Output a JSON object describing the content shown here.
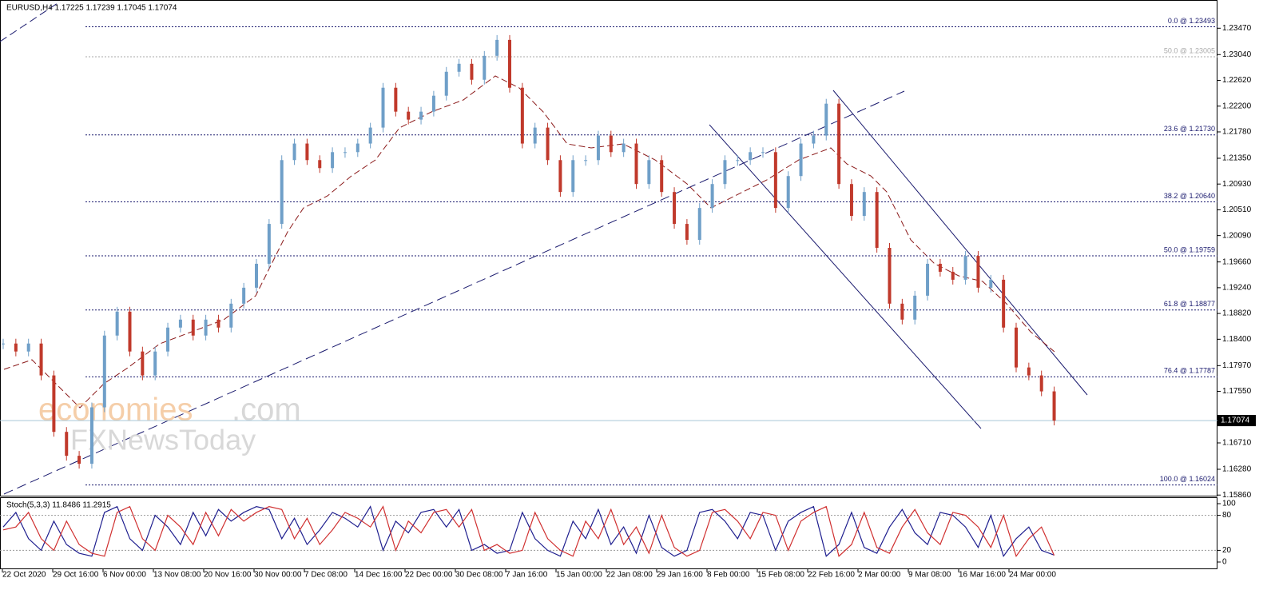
{
  "chart_data": [
    {
      "type": "candlestick",
      "title": "EURUSD,H4  1.17225 1.17239 1.17045 1.17074",
      "up_color": "#6f9fc8",
      "down_color": "#c0392b",
      "values": [
        1.1833,
        1.182,
        1.1833,
        1.1781,
        1.1689,
        1.165,
        1.1637,
        1.1729,
        1.1846,
        1.1885,
        1.182,
        1.1781,
        1.182,
        1.1859,
        1.1872,
        1.1846,
        1.1872,
        1.1859,
        1.1898,
        1.1924,
        1.1963,
        1.2028,
        1.2132,
        1.2159,
        1.2132,
        1.2119,
        1.2145,
        1.2145,
        1.2159,
        1.2185,
        1.225,
        1.2211,
        1.2198,
        1.2211,
        1.2237,
        1.2276,
        1.2289,
        1.2263,
        1.2302,
        1.2328,
        1.225,
        1.2159,
        1.2185,
        1.2132,
        1.208,
        1.2132,
        1.2132,
        1.2172,
        1.2145,
        1.2159,
        1.2093,
        1.2132,
        1.208,
        1.2028,
        1.2002,
        1.2054,
        1.2093,
        1.2132,
        1.2132,
        1.2145,
        1.2145,
        1.2054,
        1.2106,
        1.2159,
        1.2172,
        1.2224,
        1.2093,
        1.2041,
        1.208,
        1.1989,
        1.1898,
        1.1872,
        1.1911,
        1.1963,
        1.195,
        1.1937,
        1.1976,
        1.1924,
        1.1937,
        1.1859,
        1.1794,
        1.1781,
        1.1755,
        1.17074
      ],
      "ylim": [
        1.1585,
        1.2393
      ],
      "yticks": [
        {
          "value": 1.2347,
          "label": "1.23470"
        },
        {
          "value": 1.2304,
          "label": "1.23040"
        },
        {
          "value": 1.2262,
          "label": "1.22620"
        },
        {
          "value": 1.222,
          "label": "1.22200"
        },
        {
          "value": 1.2178,
          "label": "1.21780"
        },
        {
          "value": 1.2135,
          "label": "1.21350"
        },
        {
          "value": 1.2093,
          "label": "1.20930"
        },
        {
          "value": 1.2051,
          "label": "1.20510"
        },
        {
          "value": 1.2009,
          "label": "1.20090"
        },
        {
          "value": 1.1966,
          "label": "1.19660"
        },
        {
          "value": 1.1924,
          "label": "1.19240"
        },
        {
          "value": 1.1882,
          "label": "1.18820"
        },
        {
          "value": 1.184,
          "label": "1.18400"
        },
        {
          "value": 1.1797,
          "label": "1.17970"
        },
        {
          "value": 1.1755,
          "label": "1.17550"
        },
        {
          "value": 1.1671,
          "label": "1.16710"
        },
        {
          "value": 1.1628,
          "label": "1.16280"
        },
        {
          "value": 1.1586,
          "label": "1.15860"
        }
      ],
      "levels": [
        {
          "label": "0.0 @ 1.23493",
          "value": 1.23493,
          "color": "#1a1a6e"
        },
        {
          "label": "50.0 @ 1.23005",
          "value": 1.23005,
          "color": "#aaaaaa"
        },
        {
          "label": "23.6 @ 1.21730",
          "value": 1.2173,
          "color": "#1a1a6e"
        },
        {
          "label": "38.2 @ 1.20640",
          "value": 1.2064,
          "color": "#1a1a6e"
        },
        {
          "label": "50.0 @ 1.19759",
          "value": 1.19759,
          "color": "#1a1a6e"
        },
        {
          "label": "61.8 @ 1.18877",
          "value": 1.18877,
          "color": "#1a1a6e"
        },
        {
          "label": "76.4 @ 1.17787",
          "value": 1.17787,
          "color": "#1a1a6e"
        },
        {
          "label": "100.0 @ 1.16024",
          "value": 1.16024,
          "color": "#1a1a6e"
        }
      ],
      "x_labels": [
        "22 Oct 2020",
        "29 Oct 16:00",
        "6 Nov 00:00",
        "13 Nov 08:00",
        "20 Nov 16:00",
        "30 Nov 00:00",
        "7 Dec 08:00",
        "14 Dec 16:00",
        "22 Dec 00:00",
        "30 Dec 08:00",
        "7 Jan 16:00",
        "15 Jan 00:00",
        "22 Jan 08:00",
        "29 Jan 16:00",
        "8 Feb 00:00",
        "15 Feb 08:00",
        "22 Feb 16:00",
        "2 Mar 00:00",
        "9 Mar 08:00",
        "16 Mar 16:00",
        "24 Mar 00:00"
      ],
      "watermark": [
        "economies",
        ".com",
        "FXNewsToday"
      ]
    },
    {
      "type": "line",
      "title": "Stoch(5,3,3) 11.8486 11.2915",
      "series": [
        {
          "color": "#1f1f8f",
          "values": [
            60,
            85,
            40,
            20,
            70,
            30,
            15,
            10,
            85,
            95,
            40,
            20,
            80,
            60,
            30,
            85,
            45,
            90,
            70,
            85,
            95,
            90,
            40,
            75,
            30,
            55,
            85,
            75,
            60,
            95,
            20,
            70,
            50,
            85,
            90,
            60,
            90,
            20,
            30,
            15,
            20,
            85,
            40,
            20,
            10,
            70,
            40,
            90,
            30,
            60,
            15,
            80,
            25,
            10,
            20,
            85,
            90,
            70,
            40,
            85,
            80,
            20,
            70,
            85,
            95,
            10,
            30,
            85,
            25,
            15,
            60,
            90,
            50,
            30,
            85,
            80,
            60,
            25,
            80,
            10,
            40,
            60,
            20,
            11.8486
          ]
        },
        {
          "color": "#d03030",
          "values": [
            55,
            60,
            85,
            40,
            20,
            70,
            30,
            15,
            10,
            85,
            95,
            40,
            20,
            80,
            60,
            30,
            85,
            45,
            90,
            70,
            85,
            95,
            90,
            40,
            75,
            30,
            55,
            85,
            75,
            60,
            95,
            20,
            70,
            50,
            85,
            90,
            60,
            90,
            20,
            30,
            15,
            20,
            85,
            40,
            20,
            10,
            70,
            40,
            90,
            30,
            60,
            15,
            80,
            25,
            10,
            20,
            85,
            90,
            70,
            40,
            85,
            80,
            20,
            70,
            85,
            95,
            10,
            30,
            85,
            25,
            15,
            60,
            90,
            50,
            30,
            85,
            80,
            60,
            25,
            80,
            10,
            40,
            60,
            11.2915
          ]
        }
      ],
      "ylim": [
        0,
        100
      ],
      "yticks": [
        0,
        20,
        80,
        100
      ],
      "levels": [
        20,
        80
      ]
    }
  ]
}
